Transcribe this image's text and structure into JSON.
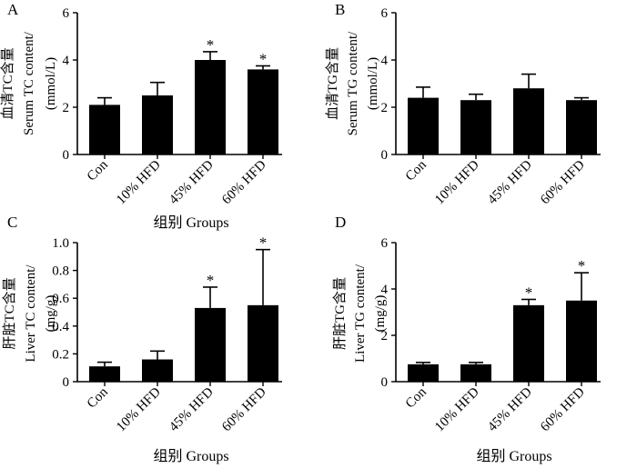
{
  "chart_data": [
    {
      "type": "bar",
      "panel": "A",
      "ylabel_lines": [
        "血清TC含量",
        "Serum TC content/",
        "(mmol/L)"
      ],
      "xlabel": "组别 Groups",
      "categories": [
        "Con",
        "10% HFD",
        "45% HFD",
        "60% HFD"
      ],
      "values": [
        2.1,
        2.5,
        4.0,
        3.6
      ],
      "errors": [
        0.3,
        0.55,
        0.35,
        0.15
      ],
      "significance": [
        "",
        "",
        "*",
        "*"
      ],
      "ylim": [
        0,
        6
      ],
      "yticks": [
        "0",
        "2",
        "4",
        "6"
      ],
      "ytick_values": [
        0,
        2,
        4,
        6
      ]
    },
    {
      "type": "bar",
      "panel": "B",
      "ylabel_lines": [
        "血清TG含量",
        "Serum TG content/",
        "(mmol/L)"
      ],
      "xlabel": "",
      "categories": [
        "Con",
        "10% HFD",
        "45% HFD",
        "60% HFD"
      ],
      "values": [
        2.4,
        2.3,
        2.8,
        2.3
      ],
      "errors": [
        0.45,
        0.25,
        0.6,
        0.1
      ],
      "significance": [
        "",
        "",
        "",
        ""
      ],
      "ylim": [
        0,
        6
      ],
      "yticks": [
        "0",
        "2",
        "4",
        "6"
      ],
      "ytick_values": [
        0,
        2,
        4,
        6
      ]
    },
    {
      "type": "bar",
      "panel": "C",
      "ylabel_lines": [
        "肝脏TC含量",
        "Liver TC content/",
        "(mg/g)"
      ],
      "xlabel": "组别 Groups",
      "categories": [
        "Con",
        "10% HFD",
        "45% HFD",
        "60% HFD"
      ],
      "values": [
        0.11,
        0.16,
        0.53,
        0.55
      ],
      "errors": [
        0.03,
        0.06,
        0.15,
        0.4
      ],
      "significance": [
        "",
        "",
        "*",
        "*"
      ],
      "ylim": [
        0,
        1.0
      ],
      "yticks": [
        "0",
        "0.2",
        "0.4",
        "0.6",
        "0.8",
        "1.0"
      ],
      "ytick_values": [
        0,
        0.2,
        0.4,
        0.6,
        0.8,
        1.0
      ]
    },
    {
      "type": "bar",
      "panel": "D",
      "ylabel_lines": [
        "肝脏TG含量",
        "Liver TG content/",
        "(mg/g)"
      ],
      "xlabel": "组别 Groups",
      "categories": [
        "Con",
        "10% HFD",
        "45% HFD",
        "60% HFD"
      ],
      "values": [
        0.75,
        0.75,
        3.3,
        3.5
      ],
      "errors": [
        0.08,
        0.08,
        0.25,
        1.2
      ],
      "significance": [
        "",
        "",
        "*",
        "*"
      ],
      "ylim": [
        0,
        6
      ],
      "yticks": [
        "0",
        "2",
        "4",
        "6"
      ],
      "ytick_values": [
        0,
        2,
        4,
        6
      ]
    }
  ]
}
